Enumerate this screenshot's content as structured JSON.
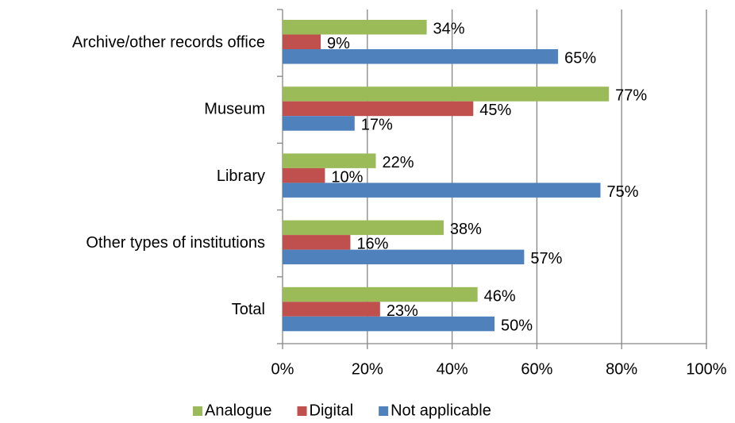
{
  "chart_data": {
    "type": "hbar",
    "categories": [
      "Archive/other records office",
      "Museum",
      "Library",
      "Other types of institutions",
      "Total"
    ],
    "series": [
      {
        "name": "Analogue",
        "color": "#9bbb59",
        "values": [
          34,
          77,
          22,
          38,
          46
        ],
        "value_labels": [
          "34%",
          "77%",
          "22%",
          "38%",
          "46%"
        ]
      },
      {
        "name": "Digital",
        "color": "#c0504d",
        "values": [
          9,
          45,
          10,
          16,
          23
        ],
        "value_labels": [
          "9%",
          "45%",
          "10%",
          "16%",
          "23%"
        ]
      },
      {
        "name": "Not applicable",
        "color": "#4f81bd",
        "values": [
          65,
          17,
          75,
          57,
          50
        ],
        "value_labels": [
          "65%",
          "17%",
          "75%",
          "57%",
          "50%"
        ]
      }
    ],
    "xlim": [
      0,
      100
    ],
    "xticks": [
      {
        "value": 0,
        "label": "0%"
      },
      {
        "value": 20,
        "label": "20%"
      },
      {
        "value": 40,
        "label": "40%"
      },
      {
        "value": 60,
        "label": "60%"
      },
      {
        "value": 80,
        "label": "80%"
      },
      {
        "value": 100,
        "label": "100%"
      }
    ],
    "grid": true,
    "legend": "bottom"
  }
}
